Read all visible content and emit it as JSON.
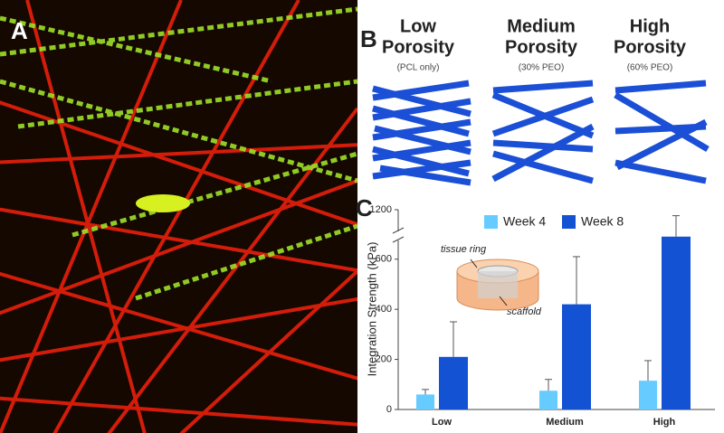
{
  "panel_labels": [
    "A",
    "B",
    "C"
  ],
  "porosity": [
    {
      "title": [
        "Low",
        "Porosity"
      ],
      "subtitle": "(PCL only)"
    },
    {
      "title": [
        "Medium",
        "Porosity"
      ],
      "subtitle": "(30% PEO)"
    },
    {
      "title": [
        "High",
        "Porosity"
      ],
      "subtitle": "(60% PEO)"
    }
  ],
  "chart_data": {
    "type": "bar",
    "y_label": "Integration Strength (kPa)",
    "categories": [
      "Low",
      "Medium",
      "High"
    ],
    "series": [
      {
        "name": "Week 4",
        "color": "#66ccff",
        "values": [
          60,
          75,
          115
        ],
        "errors": [
          20,
          45,
          80
        ]
      },
      {
        "name": "Week 8",
        "color": "#1452d4",
        "values": [
          210,
          420,
          690
        ],
        "errors": [
          140,
          190,
          480
        ]
      }
    ],
    "ylim": [
      0,
      1200
    ],
    "yticks": [
      0,
      200,
      400,
      600,
      1200
    ],
    "y_break": [
      700,
      1150
    ],
    "legend": "top",
    "annotations": [
      "tissue ring",
      "scaffold"
    ]
  }
}
